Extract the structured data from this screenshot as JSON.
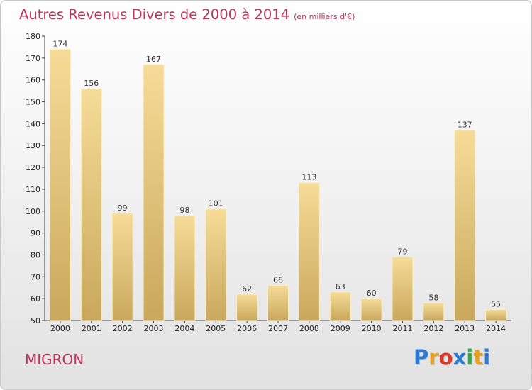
{
  "header": {
    "title": "Autres Revenus Divers de 2000 à 2014",
    "subtitle": "(en milliers d'€)"
  },
  "footer": {
    "location": "MIGRON",
    "logo_text": "Proxiti",
    "logo_letters": [
      {
        "ch": "P",
        "color": "#2b7bd0"
      },
      {
        "ch": "r",
        "color": "#e8a020"
      },
      {
        "ch": "o",
        "color": "#d83a2a"
      },
      {
        "ch": "x",
        "color": "#2b7bd0"
      },
      {
        "ch": "i",
        "color": "#3aa84a"
      },
      {
        "ch": "t",
        "color": "#e8a020"
      },
      {
        "ch": "i",
        "color": "#2b7bd0"
      }
    ]
  },
  "colors": {
    "title": "#c0345c",
    "bar_light": "#f6dc98",
    "bar_dark": "#c9a85c"
  },
  "chart_data": {
    "type": "bar",
    "categories": [
      "2000",
      "2001",
      "2002",
      "2003",
      "2004",
      "2005",
      "2006",
      "2007",
      "2008",
      "2009",
      "2010",
      "2011",
      "2012",
      "2013",
      "2014"
    ],
    "values": [
      174,
      156,
      99,
      167,
      98,
      101,
      62,
      66,
      113,
      63,
      60,
      79,
      58,
      137,
      55
    ],
    "ylim": [
      50,
      180
    ],
    "yticks": [
      50,
      60,
      70,
      80,
      90,
      100,
      110,
      120,
      130,
      140,
      150,
      160,
      170,
      180
    ],
    "grid": false,
    "title": "Autres Revenus Divers de 2000 à 2014",
    "xlabel": "",
    "ylabel": ""
  }
}
